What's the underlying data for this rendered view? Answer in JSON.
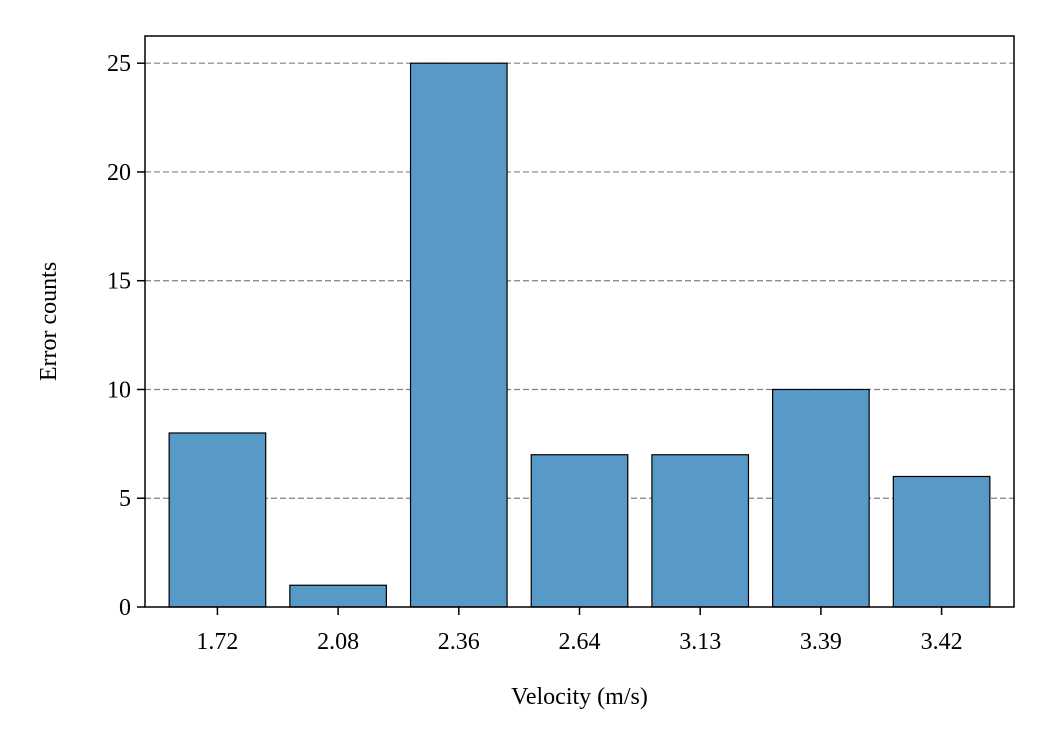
{
  "chart_data": {
    "type": "bar",
    "categories": [
      "1.72",
      "2.08",
      "2.36",
      "2.64",
      "3.13",
      "3.39",
      "3.42"
    ],
    "values": [
      8,
      1,
      25,
      7,
      7,
      10,
      6
    ],
    "title": "",
    "xlabel": "Velocity (m/s)",
    "ylabel": "Error counts",
    "ylim": [
      0,
      26.25
    ],
    "yticks": [
      0,
      5,
      10,
      15,
      20,
      25
    ],
    "grid": "y-dashed",
    "legend": "none",
    "bar_color": "#5799c7",
    "edge_color": "#000000",
    "grid_color": "#808080"
  }
}
